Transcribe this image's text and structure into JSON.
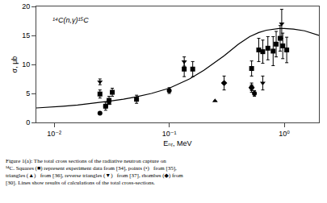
{
  "chart_data": {
    "type": "scatter",
    "title": "¹⁴C(n,γ)¹⁵C",
    "xlabel": "Eₙᵣ, MeV",
    "ylabel": "σ, μb",
    "log": "x",
    "grid": false,
    "xlim": [
      0.007,
      2.0
    ],
    "ylim": [
      0,
      20
    ],
    "xticks": [
      {
        "value": 0.01,
        "label": "10⁻²"
      },
      {
        "value": 0.1,
        "label": "10⁻¹"
      },
      {
        "value": 1.0,
        "label": "10⁰"
      }
    ],
    "yticks": [
      0,
      5,
      10,
      15,
      20
    ],
    "series": [
      {
        "type": "line",
        "line_style": "solid",
        "color": "#000000",
        "x": [
          0.007,
          0.009,
          0.012,
          0.016,
          0.02,
          0.025,
          0.03,
          0.04,
          0.05,
          0.07,
          0.1,
          0.15,
          0.2,
          0.3,
          0.4,
          0.5,
          0.6,
          0.7,
          0.8,
          0.9,
          1.0,
          1.2,
          1.5,
          2.0
        ],
        "values": [
          2.5,
          2.6,
          2.8,
          3.0,
          3.2,
          3.45,
          3.65,
          4.0,
          4.35,
          5.0,
          5.9,
          7.5,
          9.0,
          11.5,
          13.5,
          14.8,
          15.5,
          15.9,
          16.1,
          16.2,
          16.2,
          16.1,
          15.8,
          15.0
        ]
      },
      {
        "type": "scatter",
        "marker": "square",
        "color": "#000000",
        "x": [
          0.025,
          0.028,
          0.03,
          0.032,
          0.052,
          0.135,
          0.16,
          0.52,
          0.6,
          0.65,
          0.72,
          0.8,
          0.85,
          0.92,
          0.97,
          1.05
        ],
        "values": [
          4.9,
          2.8,
          3.8,
          5.2,
          4.0,
          9.2,
          9.2,
          9.3,
          12.5,
          12.2,
          12.8,
          12.3,
          13.5,
          14.5,
          13.2,
          12.5
        ],
        "yerr": [
          0.7,
          0.7,
          0.7,
          0.7,
          0.7,
          1.3,
          1.3,
          1.3,
          2.0,
          2.0,
          2.0,
          2.5,
          2.2,
          2.2,
          2.2,
          2.2
        ]
      },
      {
        "type": "scatter",
        "marker": "circle",
        "color": "#000000",
        "x": [
          0.025,
          0.028,
          0.1,
          0.52,
          0.55
        ],
        "values": [
          1.6,
          2.8,
          5.5,
          6.0,
          5.0
        ],
        "yerr": [
          0.0,
          0.0,
          0.5,
          0.5,
          0.5
        ]
      },
      {
        "type": "scatter",
        "marker": "triangle-up",
        "color": "#000000",
        "x": [
          0.03,
          0.25
        ],
        "values": [
          3.3,
          3.7
        ],
        "yerr": [
          0.0,
          0.0
        ]
      },
      {
        "type": "scatter",
        "marker": "triangle-down",
        "color": "#000000",
        "x": [
          0.025,
          0.135,
          0.65,
          0.95
        ],
        "values": [
          7.0,
          10.5,
          6.8,
          17.0
        ],
        "yerr": [
          0.5,
          0.8,
          1.2,
          2.5
        ]
      },
      {
        "type": "scatter",
        "marker": "diamond",
        "color": "#000000",
        "x": [
          0.3,
          0.52
        ],
        "values": [
          6.8,
          6.0
        ],
        "yerr": [
          1.2,
          0.8
        ]
      }
    ],
    "caption": [
      "Figure 1(a): The total cross sections of the radiative neutron capture on",
      "¹⁴C. Squares (■) represent experiment data from [34], points (•)   from [35],",
      "triangles (▲)   from [36], reverse triangles (▼)   from [37], rhombes (◆) from",
      "[30]. Lines show results of calculations of the total cross-sections."
    ]
  }
}
